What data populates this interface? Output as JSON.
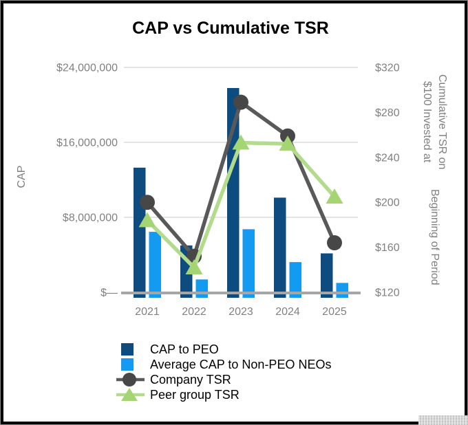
{
  "title": "CAP vs Cumulative TSR",
  "chart_data": {
    "type": "combo bar+line",
    "title": "CAP vs Cumulative TSR",
    "categories": [
      "2021",
      "2022",
      "2023",
      "2024",
      "2025"
    ],
    "series": [
      {
        "name": "CAP to PEO",
        "type": "bar",
        "axis": "left",
        "color": "#0E4C80",
        "values": [
          13300000,
          5000000,
          21800000,
          10100000,
          4150000
        ]
      },
      {
        "name": "Average CAP to Non-PEO NEOs",
        "type": "bar",
        "axis": "left",
        "color": "#139BF1",
        "values": [
          6450000,
          1370000,
          6730000,
          3220000,
          1000000
        ]
      },
      {
        "name": "Company TSR",
        "type": "line",
        "axis": "right",
        "marker": "circle",
        "line_color": "#595959",
        "marker_color": "#474747",
        "values": [
          200,
          152,
          289,
          259,
          164
        ]
      },
      {
        "name": "Peer group TSR",
        "type": "line",
        "axis": "right",
        "marker": "triangle",
        "line_color": "#B2DC8B",
        "marker_color": "#A5D572",
        "values": [
          184,
          142,
          253,
          252,
          205
        ]
      }
    ],
    "left_axis": {
      "title": "CAP",
      "min": 0,
      "max": 24000000,
      "ticks": [
        {
          "label": "$—",
          "value": 0
        },
        {
          "label": "$8,000,000",
          "value": 8000000
        },
        {
          "label": "$16,000,000",
          "value": 16000000
        },
        {
          "label": "$24,000,000",
          "value": 24000000
        }
      ]
    },
    "right_axis": {
      "title": "Cumulative TSR on $100 Invested at Beginning of Period",
      "title_lines": [
        "Cumulative TSR on $100 Invested at",
        "Beginning of Period"
      ],
      "min": 120,
      "max": 320,
      "ticks": [
        {
          "label": "$120",
          "value": 120
        },
        {
          "label": "$160",
          "value": 160
        },
        {
          "label": "$200",
          "value": 200
        },
        {
          "label": "$240",
          "value": 240
        },
        {
          "label": "$280",
          "value": 280
        },
        {
          "label": "$320",
          "value": 320
        }
      ]
    },
    "grid": true,
    "legend_position": "bottom-left",
    "axis_text_color": "#808080",
    "gridline_color": "#DBDBDB",
    "axis_line_color": "#A6A6A6"
  },
  "ui": {
    "background": "#FFFFFF",
    "frame_border_color": "#000000",
    "frame_edge_color": "#8C8C8C",
    "title_color": "#000000",
    "legend_text_color": "#000000",
    "scrollbar_thumb_color": "#D2D2D2"
  }
}
